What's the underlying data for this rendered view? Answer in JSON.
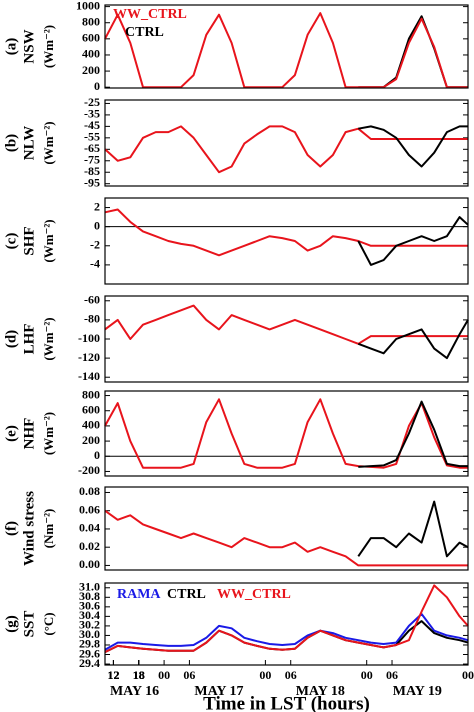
{
  "chart_data": [
    {
      "type": "line",
      "panel": "(a)",
      "ylabel": "NSW",
      "yunit": "(Wm⁻²)",
      "legend": "upper left",
      "legend_layout": "vertical",
      "x": [
        10,
        13,
        16,
        19,
        22,
        25,
        28,
        31,
        34,
        37,
        40,
        43,
        46,
        49,
        52,
        55,
        58,
        61,
        64,
        67,
        70,
        73,
        76,
        79,
        82,
        85,
        88,
        91,
        94,
        96
      ],
      "xlim": [
        10,
        96
      ],
      "ylim": [
        -10,
        1020
      ],
      "yticks": [
        0,
        200,
        400,
        600,
        800,
        1000
      ],
      "series": [
        {
          "name": "WW_CTRL",
          "color": "#e8141c",
          "values": [
            600,
            900,
            550,
            0,
            0,
            0,
            0,
            150,
            650,
            900,
            550,
            0,
            0,
            0,
            0,
            150,
            650,
            920,
            550,
            0,
            0,
            0,
            0,
            100,
            550,
            850,
            500,
            0,
            0,
            0
          ]
        },
        {
          "name": "CTRL",
          "color": "#000000",
          "values": [
            null,
            null,
            null,
            null,
            null,
            null,
            null,
            null,
            null,
            null,
            null,
            null,
            null,
            null,
            null,
            null,
            null,
            null,
            null,
            null,
            0,
            0,
            0,
            120,
            600,
            880,
            480,
            0,
            0,
            0
          ]
        }
      ]
    },
    {
      "type": "line",
      "panel": "(b)",
      "ylabel": "NLW",
      "yunit": "(Wm⁻²)",
      "x": [
        10,
        13,
        16,
        19,
        22,
        25,
        28,
        31,
        34,
        37,
        40,
        43,
        46,
        49,
        52,
        55,
        58,
        61,
        64,
        67,
        70,
        73,
        76,
        79,
        82,
        85,
        88,
        91,
        94,
        96
      ],
      "xlim": [
        10,
        96
      ],
      "ylim": [
        -97,
        -22
      ],
      "yticks": [
        -25,
        -35,
        -45,
        -55,
        -65,
        -75,
        -85,
        -95
      ],
      "series": [
        {
          "name": "WW_CTRL",
          "color": "#e8141c",
          "values": [
            -65,
            -75,
            -72,
            -55,
            -50,
            -50,
            -45,
            -55,
            -70,
            -85,
            -80,
            -60,
            -52,
            -45,
            -45,
            -50,
            -70,
            -80,
            -70,
            -50,
            -47,
            -56,
            -56,
            -56,
            -56,
            -56,
            -56,
            -56,
            -56,
            -56
          ]
        },
        {
          "name": "CTRL",
          "color": "#000000",
          "values": [
            null,
            null,
            null,
            null,
            null,
            null,
            null,
            null,
            null,
            null,
            null,
            null,
            null,
            null,
            null,
            null,
            null,
            null,
            null,
            null,
            -47,
            -45,
            -48,
            -55,
            -70,
            -80,
            -68,
            -50,
            -45,
            -45
          ]
        }
      ]
    },
    {
      "type": "line",
      "panel": "(c)",
      "ylabel": "SHF",
      "yunit": "(Wm⁻²)",
      "zero_line": true,
      "x": [
        10,
        13,
        16,
        19,
        22,
        25,
        28,
        31,
        34,
        37,
        40,
        43,
        46,
        49,
        52,
        55,
        58,
        61,
        64,
        67,
        70,
        73,
        76,
        79,
        82,
        85,
        88,
        91,
        94,
        96
      ],
      "xlim": [
        10,
        96
      ],
      "ylim": [
        -6,
        3
      ],
      "yticks": [
        2,
        0,
        -2,
        -4
      ],
      "series": [
        {
          "name": "WW_CTRL",
          "color": "#e8141c",
          "values": [
            1.5,
            1.8,
            0.5,
            -0.5,
            -1,
            -1.5,
            -1.8,
            -2,
            -2.5,
            -3,
            -2.5,
            -2,
            -1.5,
            -1,
            -1.2,
            -1.5,
            -2.5,
            -2,
            -1,
            -1.2,
            -1.5,
            -2,
            -2,
            -2,
            -2,
            -2,
            -2,
            -2,
            -2,
            -2
          ]
        },
        {
          "name": "CTRL",
          "color": "#000000",
          "values": [
            null,
            null,
            null,
            null,
            null,
            null,
            null,
            null,
            null,
            null,
            null,
            null,
            null,
            null,
            null,
            null,
            null,
            null,
            null,
            null,
            -1.5,
            -4,
            -3.5,
            -2,
            -1.5,
            -1,
            -1.5,
            -1,
            1,
            0.2
          ]
        }
      ]
    },
    {
      "type": "line",
      "panel": "(d)",
      "ylabel": "LHF",
      "yunit": "(Wm⁻²)",
      "x": [
        10,
        13,
        16,
        19,
        22,
        25,
        28,
        31,
        34,
        37,
        40,
        43,
        46,
        49,
        52,
        55,
        58,
        61,
        64,
        67,
        70,
        73,
        76,
        79,
        82,
        85,
        88,
        91,
        94,
        96
      ],
      "xlim": [
        10,
        96
      ],
      "ylim": [
        -145,
        -55
      ],
      "yticks": [
        -60,
        -80,
        -100,
        -120,
        -140
      ],
      "series": [
        {
          "name": "WW_CTRL",
          "color": "#e8141c",
          "values": [
            -90,
            -80,
            -100,
            -85,
            -80,
            -75,
            -70,
            -65,
            -80,
            -90,
            -75,
            -80,
            -85,
            -90,
            -85,
            -80,
            -85,
            -90,
            -95,
            -100,
            -105,
            -97,
            -97,
            -97,
            -97,
            -97,
            -97,
            -97,
            -97,
            -97
          ]
        },
        {
          "name": "CTRL",
          "color": "#000000",
          "values": [
            null,
            null,
            null,
            null,
            null,
            null,
            null,
            null,
            null,
            null,
            null,
            null,
            null,
            null,
            null,
            null,
            null,
            null,
            null,
            null,
            -105,
            -110,
            -115,
            -100,
            -95,
            -90,
            -110,
            -120,
            -95,
            -80
          ]
        }
      ]
    },
    {
      "type": "line",
      "panel": "(e)",
      "ylabel": "NHF",
      "yunit": "(Wm⁻²)",
      "zero_line": true,
      "x": [
        10,
        13,
        16,
        19,
        22,
        25,
        28,
        31,
        34,
        37,
        40,
        43,
        46,
        49,
        52,
        55,
        58,
        61,
        64,
        67,
        70,
        73,
        76,
        79,
        82,
        85,
        88,
        91,
        94,
        96
      ],
      "xlim": [
        10,
        96
      ],
      "ylim": [
        -260,
        860
      ],
      "yticks": [
        800,
        600,
        400,
        200,
        0,
        -200
      ],
      "series": [
        {
          "name": "WW_CTRL",
          "color": "#e8141c",
          "values": [
            400,
            700,
            200,
            -150,
            -150,
            -150,
            -150,
            -100,
            450,
            750,
            300,
            -100,
            -150,
            -150,
            -150,
            -100,
            450,
            750,
            300,
            -100,
            -130,
            -140,
            -150,
            -100,
            400,
            700,
            250,
            -120,
            -150,
            -150
          ]
        },
        {
          "name": "CTRL",
          "color": "#000000",
          "values": [
            null,
            null,
            null,
            null,
            null,
            null,
            null,
            null,
            null,
            null,
            null,
            null,
            null,
            null,
            null,
            null,
            null,
            null,
            null,
            null,
            -140,
            -130,
            -120,
            -50,
            300,
            720,
            350,
            -100,
            -130,
            -130
          ]
        }
      ]
    },
    {
      "type": "line",
      "panel": "(f)",
      "ylabel": "Wind stress",
      "yunit": "(Nm⁻²)",
      "x": [
        10,
        13,
        16,
        19,
        22,
        25,
        28,
        31,
        34,
        37,
        40,
        43,
        46,
        49,
        52,
        55,
        58,
        61,
        64,
        67,
        70,
        73,
        76,
        79,
        82,
        85,
        88,
        91,
        94,
        96
      ],
      "xlim": [
        10,
        96
      ],
      "ylim": [
        -0.005,
        0.086
      ],
      "yticks": [
        0.08,
        0.06,
        0.04,
        0.02,
        {
          "value": 0,
          "label": "0.00"
        }
      ],
      "series": [
        {
          "name": "WW_CTRL",
          "color": "#e8141c",
          "values": [
            0.06,
            0.05,
            0.055,
            0.045,
            0.04,
            0.035,
            0.03,
            0.035,
            0.03,
            0.025,
            0.02,
            0.03,
            0.025,
            0.02,
            0.02,
            0.025,
            0.015,
            0.02,
            0.015,
            0.01,
            0,
            0,
            0,
            0,
            0,
            0,
            0,
            0,
            0,
            0
          ]
        },
        {
          "name": "CTRL",
          "color": "#000000",
          "values": [
            null,
            null,
            null,
            null,
            null,
            null,
            null,
            null,
            null,
            null,
            null,
            null,
            null,
            null,
            null,
            null,
            null,
            null,
            null,
            null,
            0.01,
            0.03,
            0.03,
            0.02,
            0.035,
            0.025,
            0.07,
            0.01,
            0.025,
            0.02
          ]
        }
      ]
    },
    {
      "type": "line",
      "panel": "(g)",
      "ylabel": "SST",
      "yunit": "(°C)",
      "legend": "upper left",
      "legend_layout": "horizontal",
      "x": [
        10,
        13,
        16,
        19,
        22,
        25,
        28,
        31,
        34,
        37,
        40,
        43,
        46,
        49,
        52,
        55,
        58,
        61,
        64,
        67,
        70,
        73,
        76,
        79,
        82,
        85,
        88,
        91,
        94,
        96
      ],
      "xlim": [
        10,
        96
      ],
      "ylim": [
        29.38,
        31.1
      ],
      "yticks": [
        29.4,
        29.6,
        29.8,
        {
          "value": 30,
          "label": "30.0"
        },
        30.2,
        30.4,
        30.6,
        30.8,
        {
          "value": 31,
          "label": "31.0"
        }
      ],
      "xticks": [
        12,
        18,
        {
          "value": 24,
          "label": "00"
        },
        {
          "value": 30,
          "label": "06"
        },
        12,
        18,
        {
          "value": 48,
          "label": "00"
        },
        {
          "value": 54,
          "label": "06"
        },
        12,
        18,
        {
          "value": 72,
          "label": "00"
        },
        {
          "value": 78,
          "label": "06"
        },
        12,
        18,
        {
          "value": 96,
          "label": "00"
        }
      ],
      "dates": [
        "MAY 16",
        "MAY 17",
        "MAY 18",
        "MAY 19"
      ],
      "xlabel": "Time in LST (hours)",
      "series": [
        {
          "name": "RAMA",
          "color": "#1a1ae6",
          "values": [
            29.7,
            29.85,
            29.85,
            29.82,
            29.8,
            29.78,
            29.78,
            29.8,
            29.95,
            30.2,
            30.15,
            29.95,
            29.88,
            29.82,
            29.8,
            29.82,
            30.0,
            30.1,
            30.05,
            29.95,
            29.9,
            29.85,
            29.82,
            29.85,
            30.2,
            30.45,
            30.1,
            30.0,
            29.95,
            29.9
          ]
        },
        {
          "name": "CTRL",
          "color": "#000000",
          "values": [
            29.65,
            29.78,
            29.75,
            29.72,
            29.7,
            29.68,
            29.68,
            29.68,
            29.85,
            30.1,
            30.0,
            29.85,
            29.78,
            29.72,
            29.7,
            29.72,
            29.95,
            30.1,
            30.0,
            29.9,
            29.85,
            29.8,
            29.75,
            29.8,
            30.1,
            30.3,
            30.05,
            29.95,
            29.9,
            29.85
          ]
        },
        {
          "name": "WW_CTRL",
          "color": "#e8141c",
          "values": [
            29.65,
            29.78,
            29.75,
            29.72,
            29.7,
            29.68,
            29.68,
            29.68,
            29.85,
            30.1,
            30.0,
            29.85,
            29.78,
            29.72,
            29.7,
            29.72,
            29.95,
            30.1,
            30.0,
            29.9,
            29.85,
            29.8,
            29.75,
            29.8,
            29.9,
            30.5,
            31.05,
            30.8,
            30.4,
            30.2
          ]
        }
      ]
    }
  ]
}
